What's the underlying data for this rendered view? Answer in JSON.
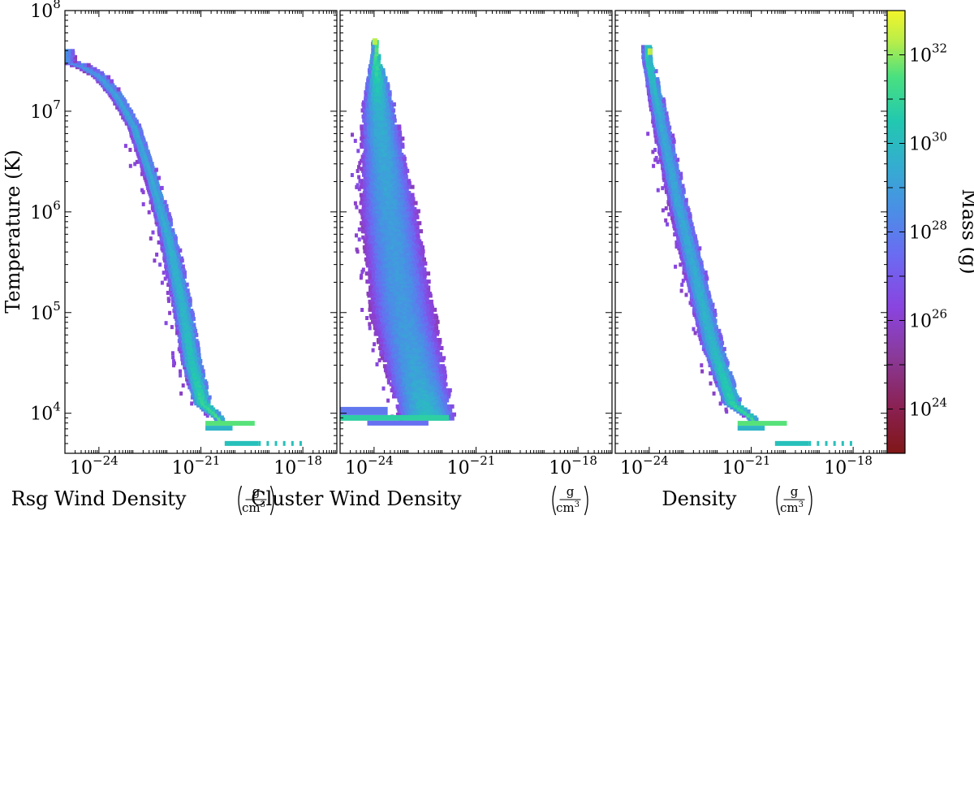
{
  "chart_data": {
    "type": "heatmap",
    "shared_y": {
      "label": "Temperature  (K)",
      "scale": "log",
      "ylim": [
        4000,
        100000000
      ],
      "ticks": [
        {
          "value": 100000000,
          "base": "10",
          "exp": "8"
        },
        {
          "value": 10000000,
          "base": "10",
          "exp": "7"
        },
        {
          "value": 1000000,
          "base": "10",
          "exp": "6"
        },
        {
          "value": 100000,
          "base": "10",
          "exp": "5"
        },
        {
          "value": 10000,
          "base": "10",
          "exp": "4"
        }
      ]
    },
    "x_axis": {
      "scale": "log",
      "xlim": [
        1e-25,
        1e-17
      ],
      "ticks": [
        {
          "value": 1e-24,
          "base": "10",
          "exp": "−24"
        },
        {
          "value": 1e-21,
          "base": "10",
          "exp": "−21"
        },
        {
          "value": 1e-18,
          "base": "10",
          "exp": "−18"
        }
      ]
    },
    "unit": {
      "numerator": "g",
      "denominator": "cm",
      "denominator_exp": "3"
    },
    "colorbar": {
      "label": "Mass  (g)",
      "scale": "log",
      "range": [
        1e+23,
        1e+33
      ],
      "colormap": "viridis",
      "ticks": [
        {
          "value": 1e+24,
          "base": "10",
          "exp": "24"
        },
        {
          "value": 1e+26,
          "base": "10",
          "exp": "26"
        },
        {
          "value": 1e+28,
          "base": "10",
          "exp": "28"
        },
        {
          "value": 1e+30,
          "base": "10",
          "exp": "30"
        },
        {
          "value": 1e+32,
          "base": "10",
          "exp": "32"
        }
      ]
    },
    "panels": [
      {
        "xlabel": "Rsg Wind Density",
        "distribution": {
          "ridge": [
            {
              "log_density": -25.0,
              "log_temperature": 7.5,
              "half_width_dex": 0.24,
              "log_mass": 28.5
            },
            {
              "log_density": -24.5,
              "log_temperature": 7.45,
              "half_width_dex": 0.22,
              "log_mass": 28.8
            },
            {
              "log_density": -24.0,
              "log_temperature": 7.35,
              "half_width_dex": 0.2,
              "log_mass": 29.0
            },
            {
              "log_density": -23.5,
              "log_temperature": 7.15,
              "half_width_dex": 0.18,
              "log_mass": 29.2
            },
            {
              "log_density": -23.0,
              "log_temperature": 6.85,
              "half_width_dex": 0.17,
              "log_mass": 29.3
            },
            {
              "log_density": -22.5,
              "log_temperature": 6.35,
              "half_width_dex": 0.18,
              "log_mass": 29.4
            },
            {
              "log_density": -22.0,
              "log_temperature": 5.75,
              "half_width_dex": 0.22,
              "log_mass": 29.6
            },
            {
              "log_density": -21.6,
              "log_temperature": 5.1,
              "half_width_dex": 0.25,
              "log_mass": 29.8
            },
            {
              "log_density": -21.3,
              "log_temperature": 4.5,
              "half_width_dex": 0.25,
              "log_mass": 30.3
            },
            {
              "log_density": -21.0,
              "log_temperature": 4.1,
              "half_width_dex": 0.22,
              "log_mass": 31.0
            },
            {
              "log_density": -20.5,
              "log_temperature": 3.95,
              "half_width_dex": 0.1,
              "log_mass": 31.4
            }
          ],
          "floor_log_temperature": 3.9,
          "extra_strip": {
            "log_temperature": 3.7,
            "log_density_range": [
              -20.3,
              -18.1
            ],
            "log_mass": 30.2
          }
        }
      },
      {
        "xlabel": "Cluster Wind Density",
        "distribution": {
          "peak": {
            "log_density": -24.0,
            "log_temperature": 7.7,
            "log_mass": 32.3
          },
          "ridge": [
            {
              "log_density": -24.0,
              "log_temperature": 7.6,
              "half_width_dex": 0.08,
              "log_mass": 31.5
            },
            {
              "log_density": -23.9,
              "log_temperature": 7.0,
              "half_width_dex": 0.45,
              "log_mass": 29.6
            },
            {
              "log_density": -23.6,
              "log_temperature": 6.0,
              "half_width_dex": 0.75,
              "log_mass": 29.0
            },
            {
              "log_density": -23.2,
              "log_temperature": 5.0,
              "half_width_dex": 0.85,
              "log_mass": 28.8
            },
            {
              "log_density": -22.8,
              "log_temperature": 4.4,
              "half_width_dex": 0.8,
              "log_mass": 29.2
            },
            {
              "log_density": -22.5,
              "log_temperature": 4.0,
              "half_width_dex": 0.7,
              "log_mass": 30.0
            }
          ],
          "floor_band": {
            "log_temperature": 3.95,
            "log_density_range": [
              -25.0,
              -21.8
            ],
            "log_mass": 30.8
          }
        }
      },
      {
        "xlabel": "Density",
        "distribution": {
          "peak": {
            "log_density": -24.0,
            "log_temperature": 7.6,
            "log_mass": 32.3
          },
          "ridge": [
            {
              "log_density": -24.1,
              "log_temperature": 7.55,
              "half_width_dex": 0.12,
              "log_mass": 30.5
            },
            {
              "log_density": -23.7,
              "log_temperature": 6.9,
              "half_width_dex": 0.22,
              "log_mass": 29.4
            },
            {
              "log_density": -23.2,
              "log_temperature": 6.1,
              "half_width_dex": 0.25,
              "log_mass": 29.3
            },
            {
              "log_density": -22.7,
              "log_temperature": 5.4,
              "half_width_dex": 0.28,
              "log_mass": 29.5
            },
            {
              "log_density": -22.2,
              "log_temperature": 4.7,
              "half_width_dex": 0.28,
              "log_mass": 29.9
            },
            {
              "log_density": -21.6,
              "log_temperature": 4.1,
              "half_width_dex": 0.22,
              "log_mass": 30.8
            },
            {
              "log_density": -21.0,
              "log_temperature": 3.95,
              "half_width_dex": 0.1,
              "log_mass": 31.3
            }
          ],
          "floor_log_temperature": 3.9,
          "extra_strip": {
            "log_temperature": 3.7,
            "log_density_range": [
              -20.3,
              -18.1
            ],
            "log_mass": 30.2
          }
        }
      }
    ]
  }
}
